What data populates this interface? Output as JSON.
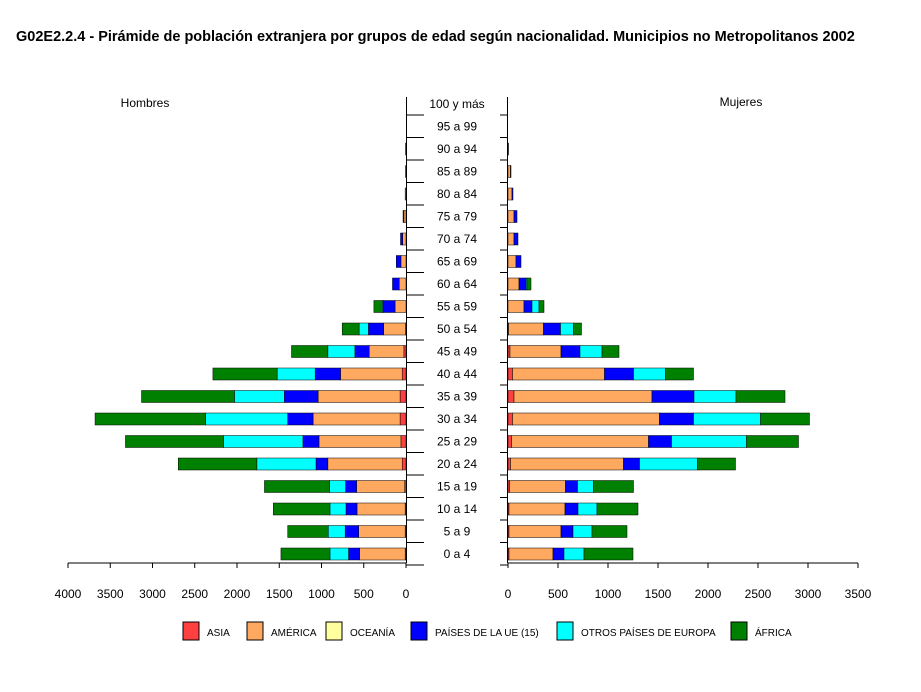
{
  "chart_data": {
    "type": "bar",
    "title": "G02E2.2.4 - Pirámide de población extranjera por grupos de edad según nacionalidad. Municipios no  Metropolitanos 2002",
    "left_panel_label": "Hombres",
    "right_panel_label": "Mujeres",
    "left_xlim": [
      0,
      4000
    ],
    "right_xlim": [
      0,
      3500
    ],
    "left_ticks": [
      "4000",
      "3500",
      "3000",
      "2500",
      "2000",
      "1500",
      "1000",
      "500",
      "0"
    ],
    "right_ticks": [
      "0",
      "500",
      "1000",
      "1500",
      "2000",
      "2500",
      "3000",
      "3500"
    ],
    "categories": [
      "100 y más",
      "95 a 99",
      "90 a 94",
      "85 a 89",
      "80 a 84",
      "75 a 79",
      "70 a 74",
      "65 a 69",
      "60 a 64",
      "55 a 59",
      "50 a 54",
      "45 a 49",
      "40 a 44",
      "35 a 39",
      "30 a 34",
      "25 a 29",
      "20 a 24",
      "15 a 19",
      "10 a 14",
      "5 a 9",
      "0 a 4"
    ],
    "series": [
      {
        "name": "ASIA",
        "color": "#ff4040",
        "hombres": [
          0,
          0,
          0,
          0,
          0,
          0,
          0,
          0,
          0,
          0,
          5,
          25,
          45,
          70,
          70,
          60,
          45,
          15,
          10,
          10,
          10
        ],
        "mujeres": [
          0,
          0,
          0,
          0,
          0,
          0,
          0,
          0,
          0,
          0,
          5,
          20,
          45,
          60,
          45,
          35,
          25,
          15,
          10,
          10,
          10
        ]
      },
      {
        "name": "AMÉRICA",
        "color": "#ffa860",
        "hombres": [
          0,
          0,
          5,
          5,
          10,
          25,
          40,
          60,
          80,
          130,
          260,
          410,
          730,
          970,
          1030,
          970,
          880,
          570,
          570,
          550,
          540
        ],
        "mujeres": [
          0,
          0,
          5,
          25,
          40,
          60,
          60,
          80,
          110,
          160,
          350,
          510,
          920,
          1380,
          1470,
          1370,
          1130,
          560,
          560,
          520,
          440
        ]
      },
      {
        "name": "OCEANÍA",
        "color": "#ffffa0",
        "hombres": [
          0,
          0,
          0,
          0,
          0,
          0,
          0,
          0,
          0,
          0,
          0,
          0,
          0,
          0,
          0,
          0,
          0,
          0,
          0,
          0,
          0
        ],
        "mujeres": [
          0,
          0,
          0,
          0,
          0,
          0,
          0,
          0,
          0,
          0,
          0,
          0,
          0,
          0,
          0,
          0,
          0,
          0,
          0,
          0,
          0
        ]
      },
      {
        "name": "PAÍSES DE LA UE (15)",
        "color": "#0000ff",
        "hombres": [
          0,
          0,
          0,
          0,
          0,
          10,
          25,
          55,
          80,
          140,
          180,
          170,
          300,
          400,
          300,
          190,
          140,
          130,
          130,
          160,
          130
        ],
        "mujeres": [
          0,
          0,
          0,
          5,
          10,
          30,
          40,
          50,
          70,
          80,
          170,
          190,
          290,
          420,
          340,
          230,
          160,
          120,
          130,
          120,
          110
        ]
      },
      {
        "name": "OTROS PAÍSES DE EUROPA",
        "color": "#00ffff",
        "hombres": [
          0,
          0,
          0,
          0,
          0,
          0,
          0,
          0,
          0,
          10,
          110,
          320,
          450,
          590,
          970,
          940,
          700,
          190,
          190,
          200,
          220
        ],
        "mujeres": [
          0,
          0,
          0,
          0,
          0,
          0,
          0,
          0,
          10,
          70,
          130,
          220,
          320,
          420,
          670,
          750,
          580,
          160,
          190,
          190,
          200
        ]
      },
      {
        "name": "ÁFRICA",
        "color": "#008000",
        "hombres": [
          0,
          0,
          0,
          0,
          0,
          0,
          0,
          0,
          0,
          100,
          200,
          430,
          760,
          1100,
          1310,
          1160,
          930,
          770,
          670,
          480,
          580
        ],
        "mujeres": [
          0,
          0,
          0,
          0,
          0,
          0,
          0,
          0,
          40,
          50,
          80,
          170,
          280,
          490,
          490,
          520,
          380,
          400,
          410,
          350,
          490
        ]
      }
    ]
  }
}
